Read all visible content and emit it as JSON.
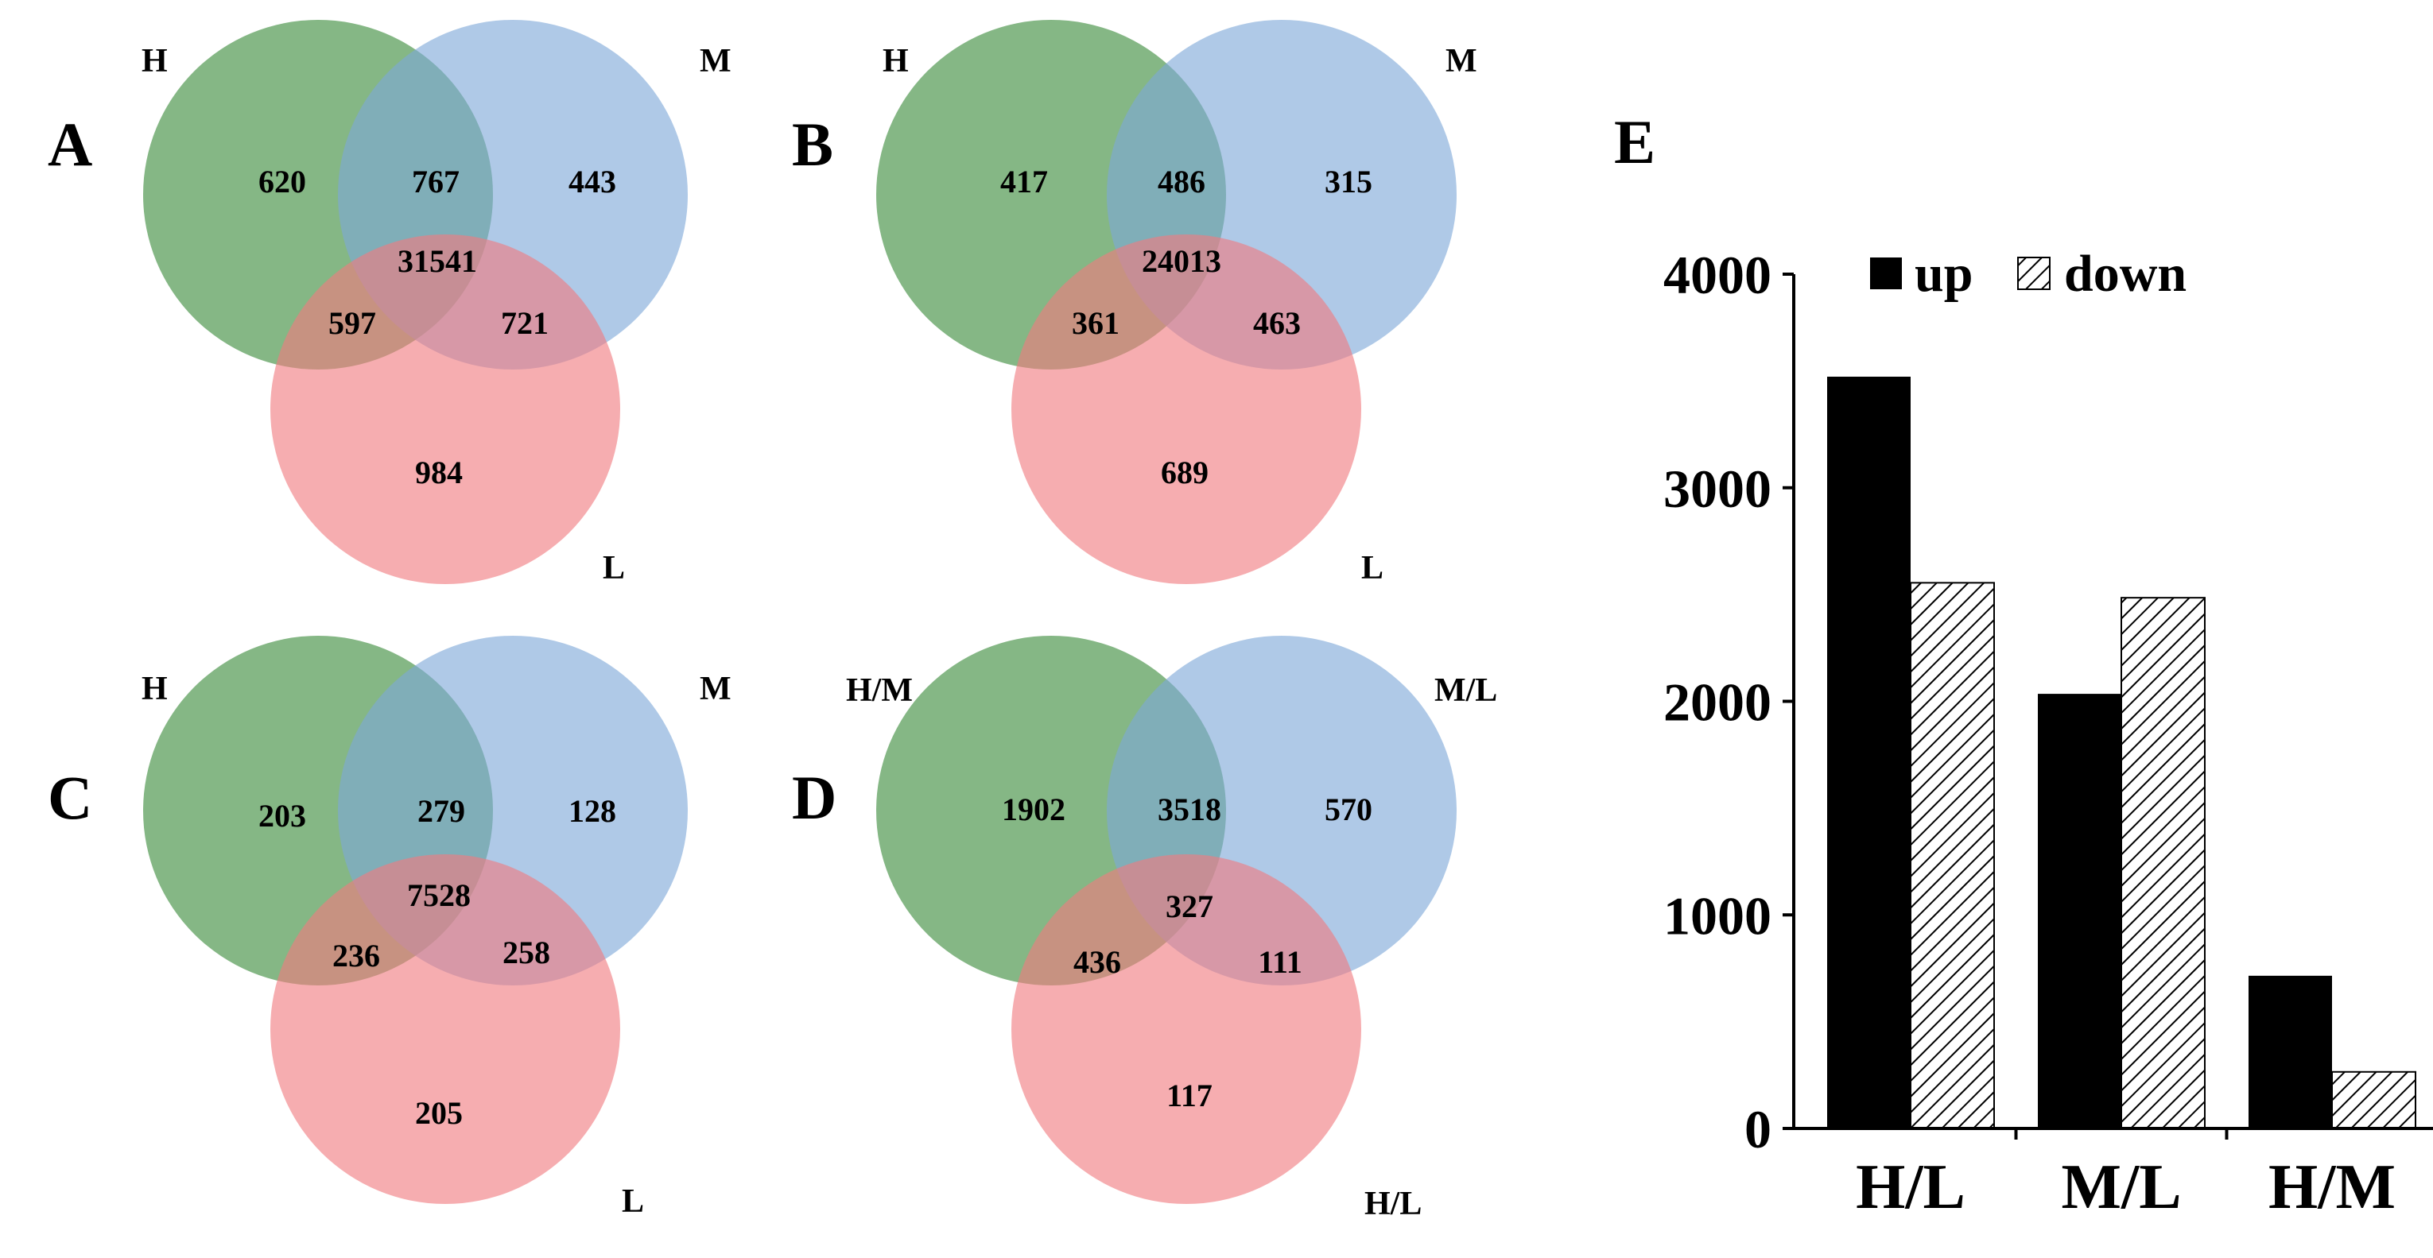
{
  "venns": [
    {
      "panel": "A",
      "labels": {
        "top_left": "H",
        "top_right": "M",
        "bottom": "L"
      },
      "regions": {
        "a_only": "620",
        "b_only": "443",
        "c_only": "984",
        "ab": "767",
        "ac": "597",
        "bc": "721",
        "abc": "31541"
      }
    },
    {
      "panel": "B",
      "labels": {
        "top_left": "H",
        "top_right": "M",
        "bottom": "L"
      },
      "regions": {
        "a_only": "417",
        "b_only": "315",
        "c_only": "689",
        "ab": "486",
        "ac": "361",
        "bc": "463",
        "abc": "24013"
      }
    },
    {
      "panel": "C",
      "labels": {
        "top_left": "H",
        "top_right": "M",
        "bottom": "L"
      },
      "regions": {
        "a_only": "203",
        "b_only": "128",
        "c_only": "205",
        "ab": "279",
        "ac": "236",
        "bc": "258",
        "abc": "7528"
      }
    },
    {
      "panel": "D",
      "labels": {
        "top_left": "H/M",
        "top_right": "M/L",
        "bottom": "H/L"
      },
      "regions": {
        "a_only": "1902",
        "b_only": "570",
        "c_only": "117",
        "ab": "3518",
        "ac": "436",
        "bc": "111",
        "abc": "327"
      }
    }
  ],
  "colors": {
    "circle_a": "#3a8a3a",
    "circle_b": "#7ea8d8",
    "circle_c": "#f07a80"
  },
  "chart_data": {
    "panel": "E",
    "type": "bar",
    "categories": [
      "H/L",
      "M/L",
      "H/M"
    ],
    "series": [
      {
        "name": "up",
        "values": [
          3520,
          2035,
          715
        ],
        "fill": "solid-black"
      },
      {
        "name": "down",
        "values": [
          2555,
          2485,
          265
        ],
        "fill": "diagonal-hatch"
      }
    ],
    "yticks": [
      "0",
      "1000",
      "2000",
      "3000",
      "4000"
    ],
    "ylim": [
      0,
      4000
    ],
    "legend_position": "top"
  }
}
